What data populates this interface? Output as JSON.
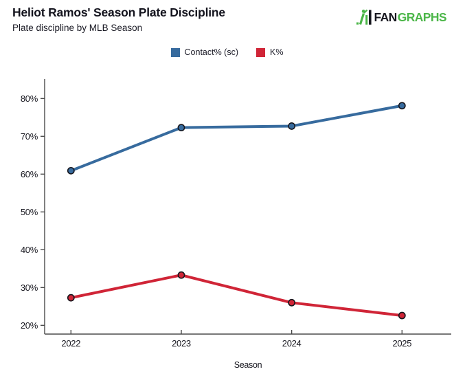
{
  "header": {
    "title": "Heliot Ramos' Season Plate Discipline",
    "subtitle": "Plate discipline by MLB Season",
    "brand": {
      "fan": "FAN",
      "graphs": "GRAPHS",
      "green": "#4bb648",
      "black": "#17171f"
    }
  },
  "legend": [
    {
      "label": "Contact% (sc)",
      "color": "#376b9e"
    },
    {
      "label": "K%",
      "color": "#d02537"
    }
  ],
  "chart_data": {
    "type": "line",
    "categories": [
      "2022",
      "2023",
      "2024",
      "2025"
    ],
    "series": [
      {
        "name": "Contact% (sc)",
        "color": "#376b9e",
        "values": [
          60.9,
          72.3,
          72.7,
          78.1
        ]
      },
      {
        "name": "K%",
        "color": "#d02537",
        "values": [
          27.3,
          33.3,
          26.0,
          22.6
        ]
      }
    ],
    "title": "Heliot Ramos' Season Plate Discipline",
    "subtitle": "Plate discipline by MLB Season",
    "xlabel": "Season",
    "ylabel": "",
    "ylim": [
      20,
      80
    ],
    "yticks": [
      80,
      70,
      60,
      50,
      40,
      30,
      20
    ],
    "ytick_format": "{}%",
    "grid": false,
    "legend_position": "top"
  }
}
